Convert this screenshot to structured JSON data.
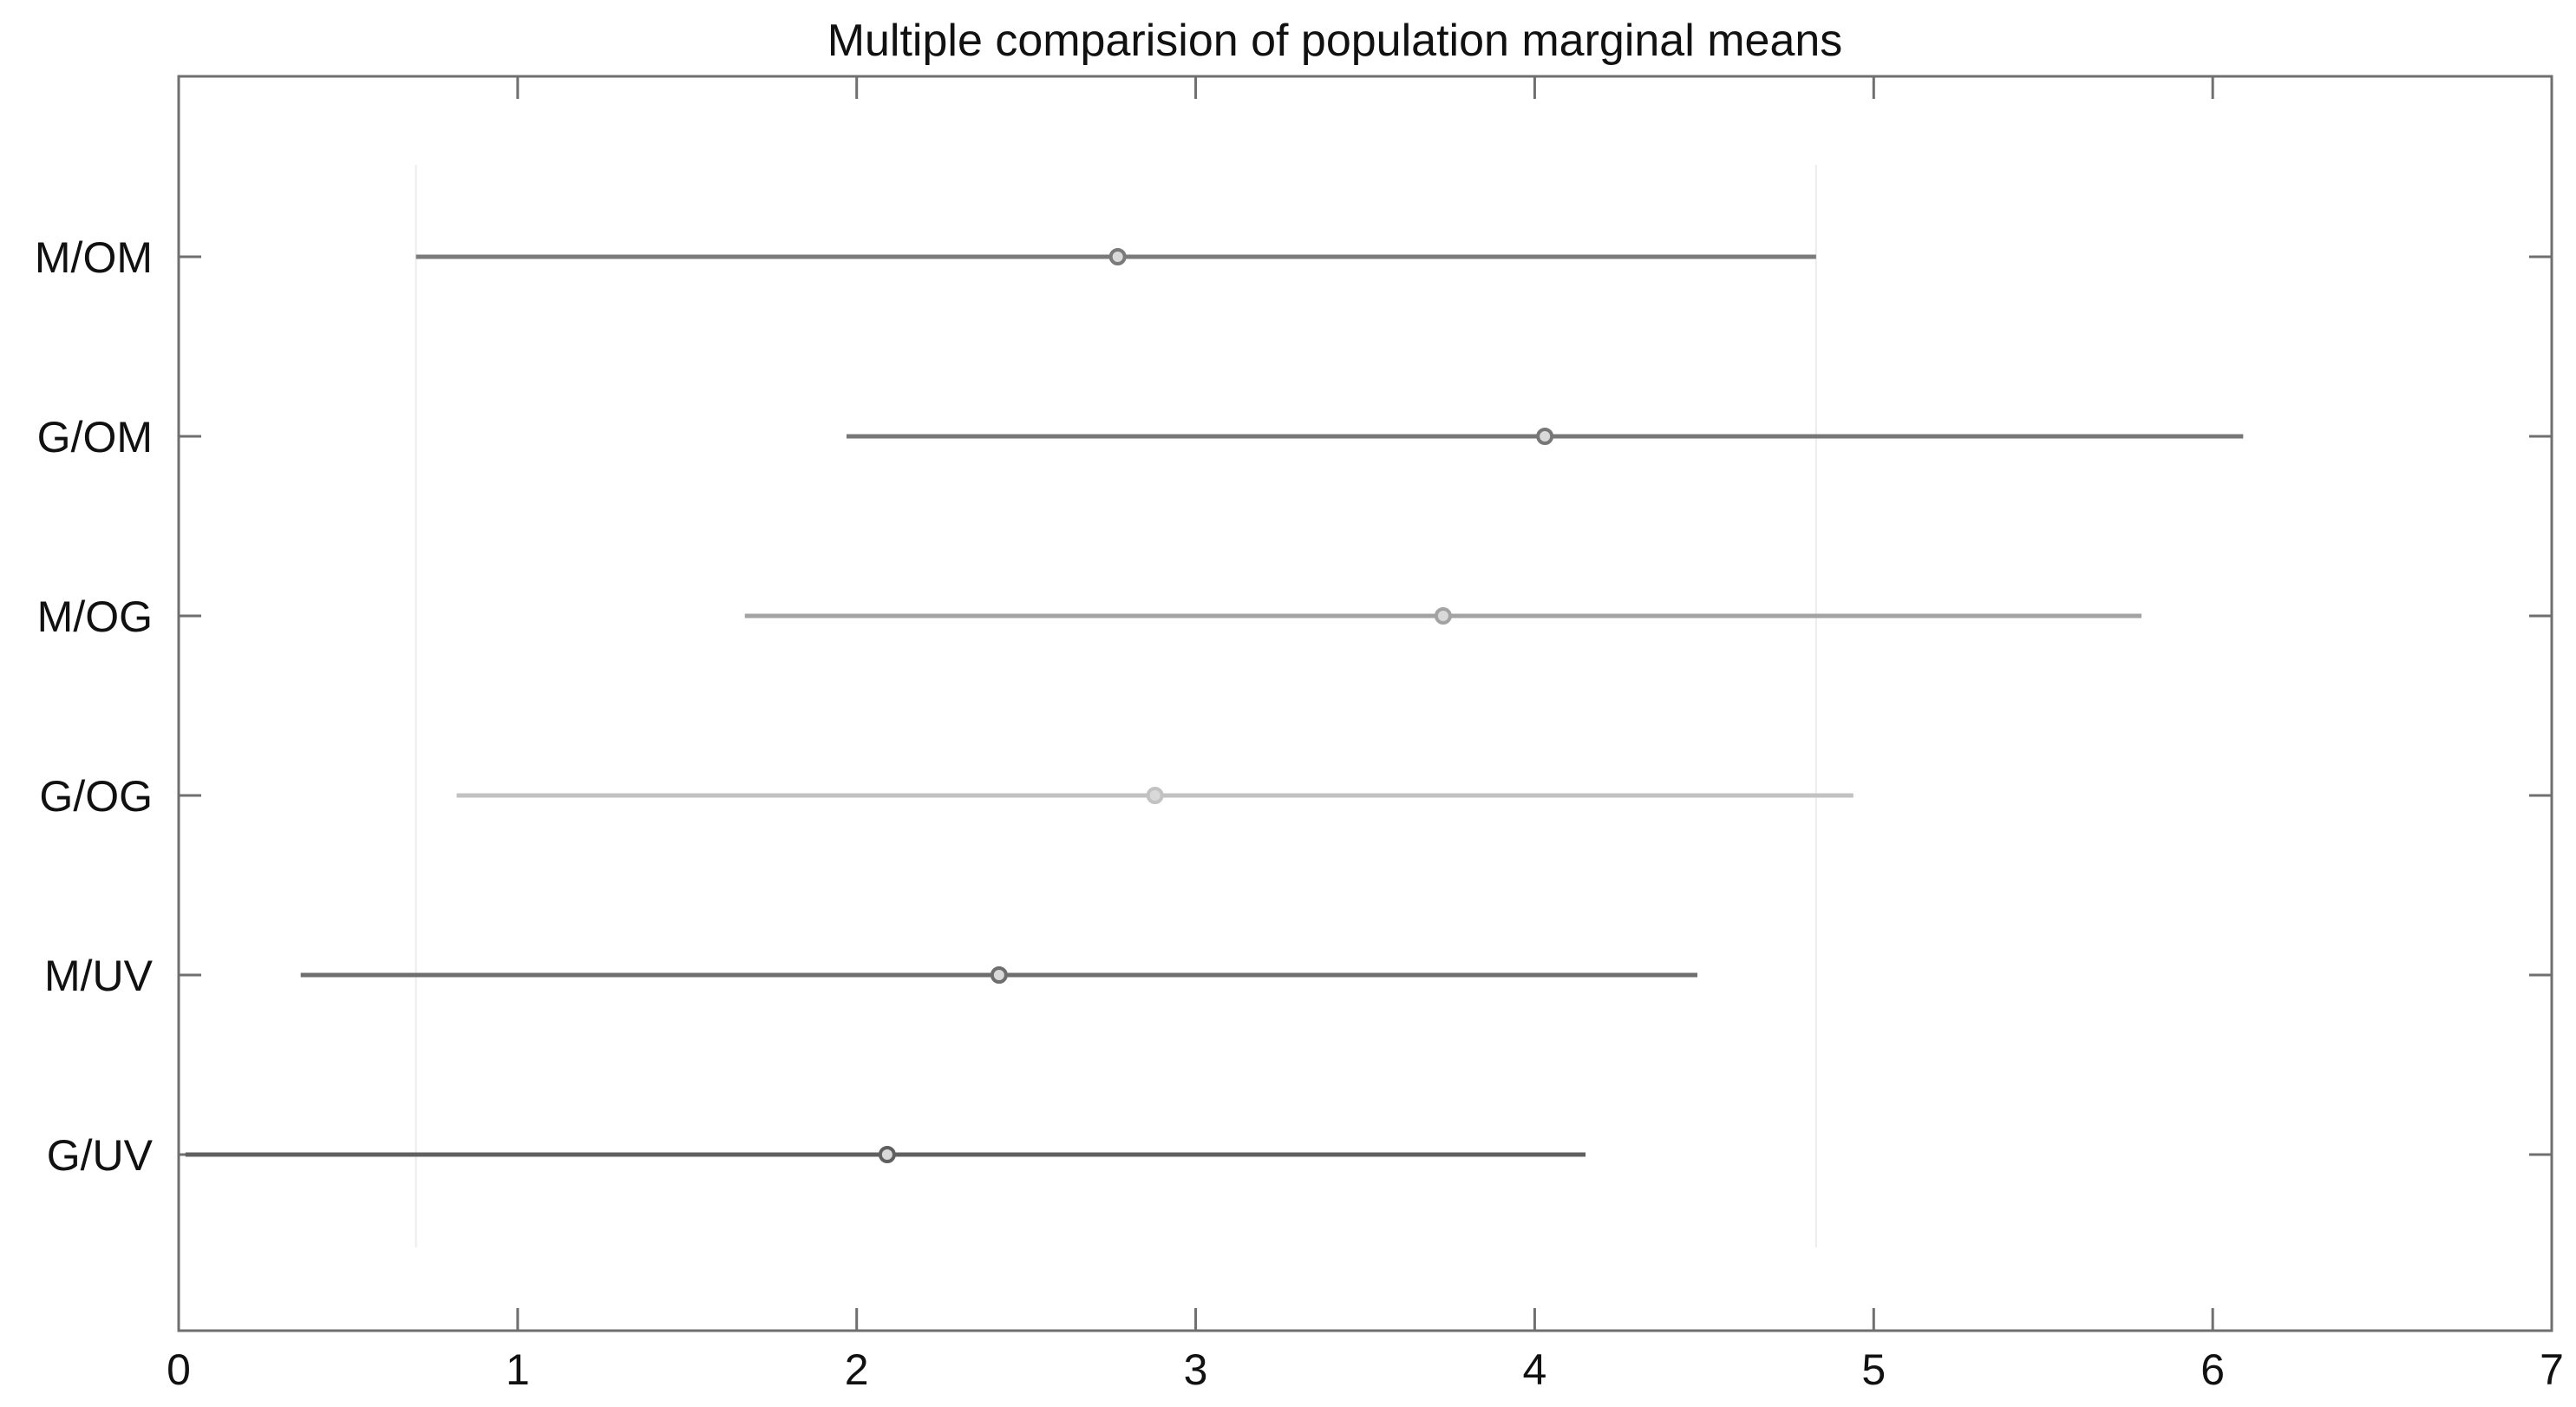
{
  "chart_data": {
    "type": "errorbar",
    "title": "Multiple comparision of population marginal means",
    "xlabel": "",
    "ylabel": "",
    "xlim": [
      0,
      7
    ],
    "xticks": [
      0,
      1,
      2,
      3,
      4,
      5,
      6,
      7
    ],
    "grid": "vertical reference lines at selected interval ends",
    "reference_lines": [
      0.7,
      4.83
    ],
    "series": [
      {
        "label": "M/OM",
        "mean": 2.77,
        "lower": 0.7,
        "upper": 4.83,
        "color": "#7a7a7a"
      },
      {
        "label": "G/OM",
        "mean": 4.03,
        "lower": 1.97,
        "upper": 6.09,
        "color": "#777777"
      },
      {
        "label": "M/OG",
        "mean": 3.73,
        "lower": 1.67,
        "upper": 5.79,
        "color": "#a3a3a3"
      },
      {
        "label": "G/OG",
        "mean": 2.88,
        "lower": 0.82,
        "upper": 4.94,
        "color": "#c2c2c2"
      },
      {
        "label": "M/UV",
        "mean": 2.42,
        "lower": 0.36,
        "upper": 4.48,
        "color": "#6e6e6e"
      },
      {
        "label": "G/UV",
        "mean": 2.09,
        "lower": 0.02,
        "upper": 4.15,
        "color": "#606060"
      }
    ]
  }
}
